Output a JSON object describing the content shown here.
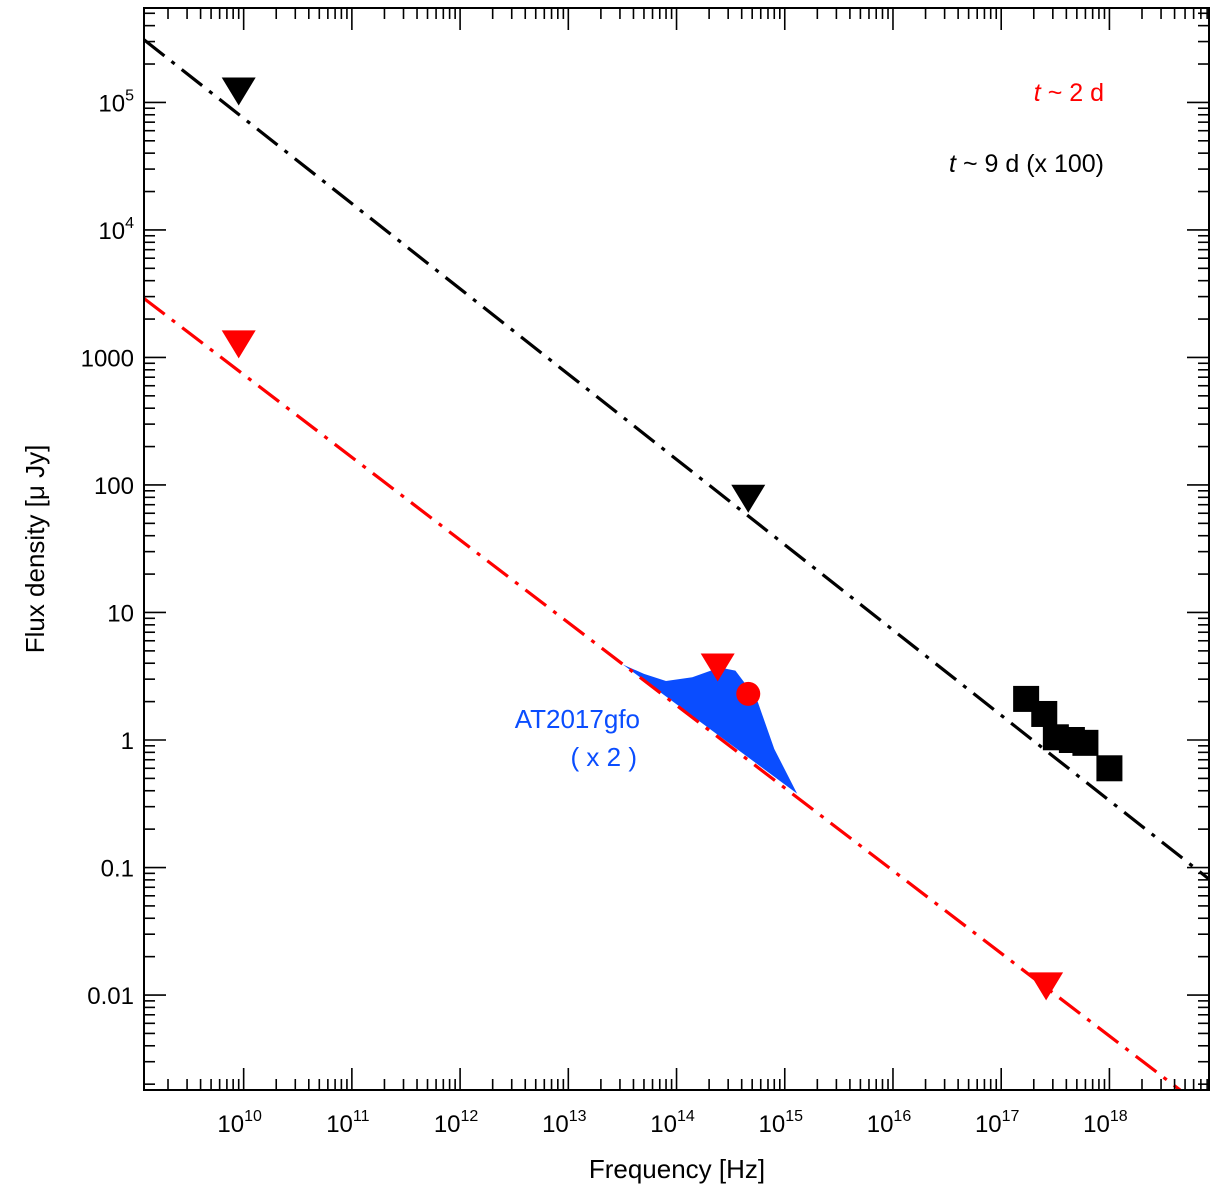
{
  "chart_data": {
    "type": "scatter",
    "xlabel": "Frequency  [Hz]",
    "ylabel": "Flux density [μ Jy]",
    "xscale": "log",
    "yscale": "log",
    "xlim": [
      1200000000.0,
      8.5e+18
    ],
    "ylim": [
      0.0018,
      550000
    ],
    "x_ticks": [
      {
        "value": 10000000000.0,
        "base": "10",
        "exp": "10"
      },
      {
        "value": 100000000000.0,
        "base": "10",
        "exp": "11"
      },
      {
        "value": 1000000000000.0,
        "base": "10",
        "exp": "12"
      },
      {
        "value": 10000000000000.0,
        "base": "10",
        "exp": "13"
      },
      {
        "value": 100000000000000.0,
        "base": "10",
        "exp": "14"
      },
      {
        "value": 1000000000000000.0,
        "base": "10",
        "exp": "15"
      },
      {
        "value": 1e+16,
        "base": "10",
        "exp": "16"
      },
      {
        "value": 1e+17,
        "base": "10",
        "exp": "17"
      },
      {
        "value": 1e+18,
        "base": "10",
        "exp": "18"
      }
    ],
    "y_ticks": [
      {
        "value": 0.01,
        "label": "0.01"
      },
      {
        "value": 0.1,
        "label": "0.1"
      },
      {
        "value": 1,
        "label": "1"
      },
      {
        "value": 10,
        "label": "10"
      },
      {
        "value": 100,
        "label": "100"
      },
      {
        "value": 1000,
        "label": "1000"
      },
      {
        "value": 10000,
        "base": "10",
        "exp": "4"
      },
      {
        "value": 100000,
        "base": "10",
        "exp": "5"
      }
    ],
    "legend": [
      {
        "italic": "t",
        "text": " ~ 2 d",
        "color": "#ff0000"
      },
      {
        "italic": "t",
        "text": " ~ 9 d (x 100)",
        "color": "#000000"
      }
    ],
    "legend_position": "top-right",
    "series": [
      {
        "color": "#000000",
        "model_line": {
          "style": "dash-dot",
          "x": [
            1200000000.0,
            8.5e+18
          ],
          "y": [
            310000,
            0.08
          ]
        },
        "upper_limits": [
          {
            "x": 9000000000.0,
            "y": 125000
          },
          {
            "x": 460000000000000.0,
            "y": 80
          }
        ],
        "detections": [
          {
            "x": 1.7e+17,
            "y": 2.1
          },
          {
            "x": 2.5e+17,
            "y": 1.6
          },
          {
            "x": 3.2e+17,
            "y": 1.05
          },
          {
            "x": 4.5e+17,
            "y": 1.0
          },
          {
            "x": 6e+17,
            "y": 0.95
          },
          {
            "x": 1e+18,
            "y": 0.6
          }
        ]
      },
      {
        "color": "#ff0000",
        "model_line": {
          "style": "dash-dot",
          "x": [
            1200000000.0,
            4.5e+18
          ],
          "y": [
            2900,
            0.0018
          ]
        },
        "upper_limits": [
          {
            "x": 9000000000.0,
            "y": 1300
          },
          {
            "x": 240000000000000.0,
            "y": 3.8
          },
          {
            "x": 2.6e+17,
            "y": 0.012
          }
        ],
        "detections": [
          {
            "x": 460000000000000.0,
            "y": 2.3
          }
        ]
      }
    ],
    "shaded_region": {
      "label_lines": [
        "AT2017gfo",
        "( x 2 )"
      ],
      "color": "#0a4dff",
      "upper": [
        {
          "x": 32000000000000.0,
          "y": 3.9
        },
        {
          "x": 50000000000000.0,
          "y": 3.3
        },
        {
          "x": 80000000000000.0,
          "y": 2.9
        },
        {
          "x": 140000000000000.0,
          "y": 3.1
        },
        {
          "x": 250000000000000.0,
          "y": 3.7
        },
        {
          "x": 350000000000000.0,
          "y": 3.5
        },
        {
          "x": 550000000000000.0,
          "y": 2.1
        },
        {
          "x": 800000000000000.0,
          "y": 0.85
        },
        {
          "x": 1300000000000000.0,
          "y": 0.38
        }
      ],
      "lower": [
        {
          "x": 1300000000000000.0,
          "y": 0.38
        },
        {
          "x": 32000000000000.0,
          "y": 3.9
        }
      ]
    }
  }
}
